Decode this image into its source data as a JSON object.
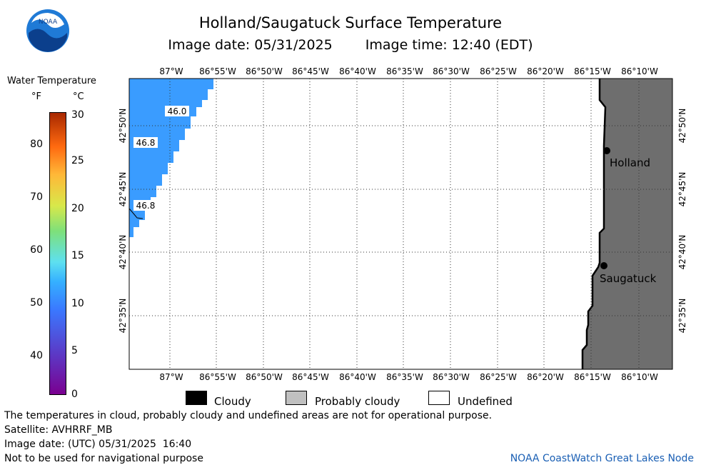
{
  "header": {
    "title": "Holland/Saugatuck Surface Temperature",
    "image_date": "Image date: 05/31/2025",
    "image_time": "Image time: 12:40 (EDT)",
    "logo_text": "NOAA"
  },
  "legend": {
    "title": "Water Temperature",
    "unit_f": "°F",
    "unit_c": "°C",
    "f_ticks": [
      "80",
      "70",
      "60",
      "50",
      "40"
    ],
    "c_ticks": [
      "30",
      "25",
      "20",
      "15",
      "10",
      "5",
      "0"
    ]
  },
  "map": {
    "lon_labels": [
      "87°W",
      "86°55'W",
      "86°50'W",
      "86°45'W",
      "86°40'W",
      "86°35'W",
      "86°30'W",
      "86°25'W",
      "86°20'W",
      "86°15'W",
      "86°10'W"
    ],
    "lat_labels": [
      "42°50'N",
      "42°45'N",
      "42°40'N",
      "42°35'N"
    ],
    "temp_labels": [
      "46.0",
      "46.8",
      "46.8"
    ],
    "places": [
      "Holland",
      "Saugatuck"
    ],
    "colors": {
      "water": "#3a9cff",
      "land": "#6e6e6e",
      "coast": "#000000"
    }
  },
  "key": {
    "cloudy": "Cloudy",
    "probably_cloudy": "Probably cloudy",
    "undefined": "Undefined"
  },
  "footer": {
    "note1": "The temperatures in cloud, probably cloudy and undefined areas are not for operational purpose.",
    "satellite": "Satellite: AVHRRF_MB",
    "utc_date": "Image date: (UTC) 05/31/2025  16:40",
    "nav_warning": "Not to be used for navigational purpose",
    "credit": "NOAA CoastWatch Great Lakes Node"
  }
}
